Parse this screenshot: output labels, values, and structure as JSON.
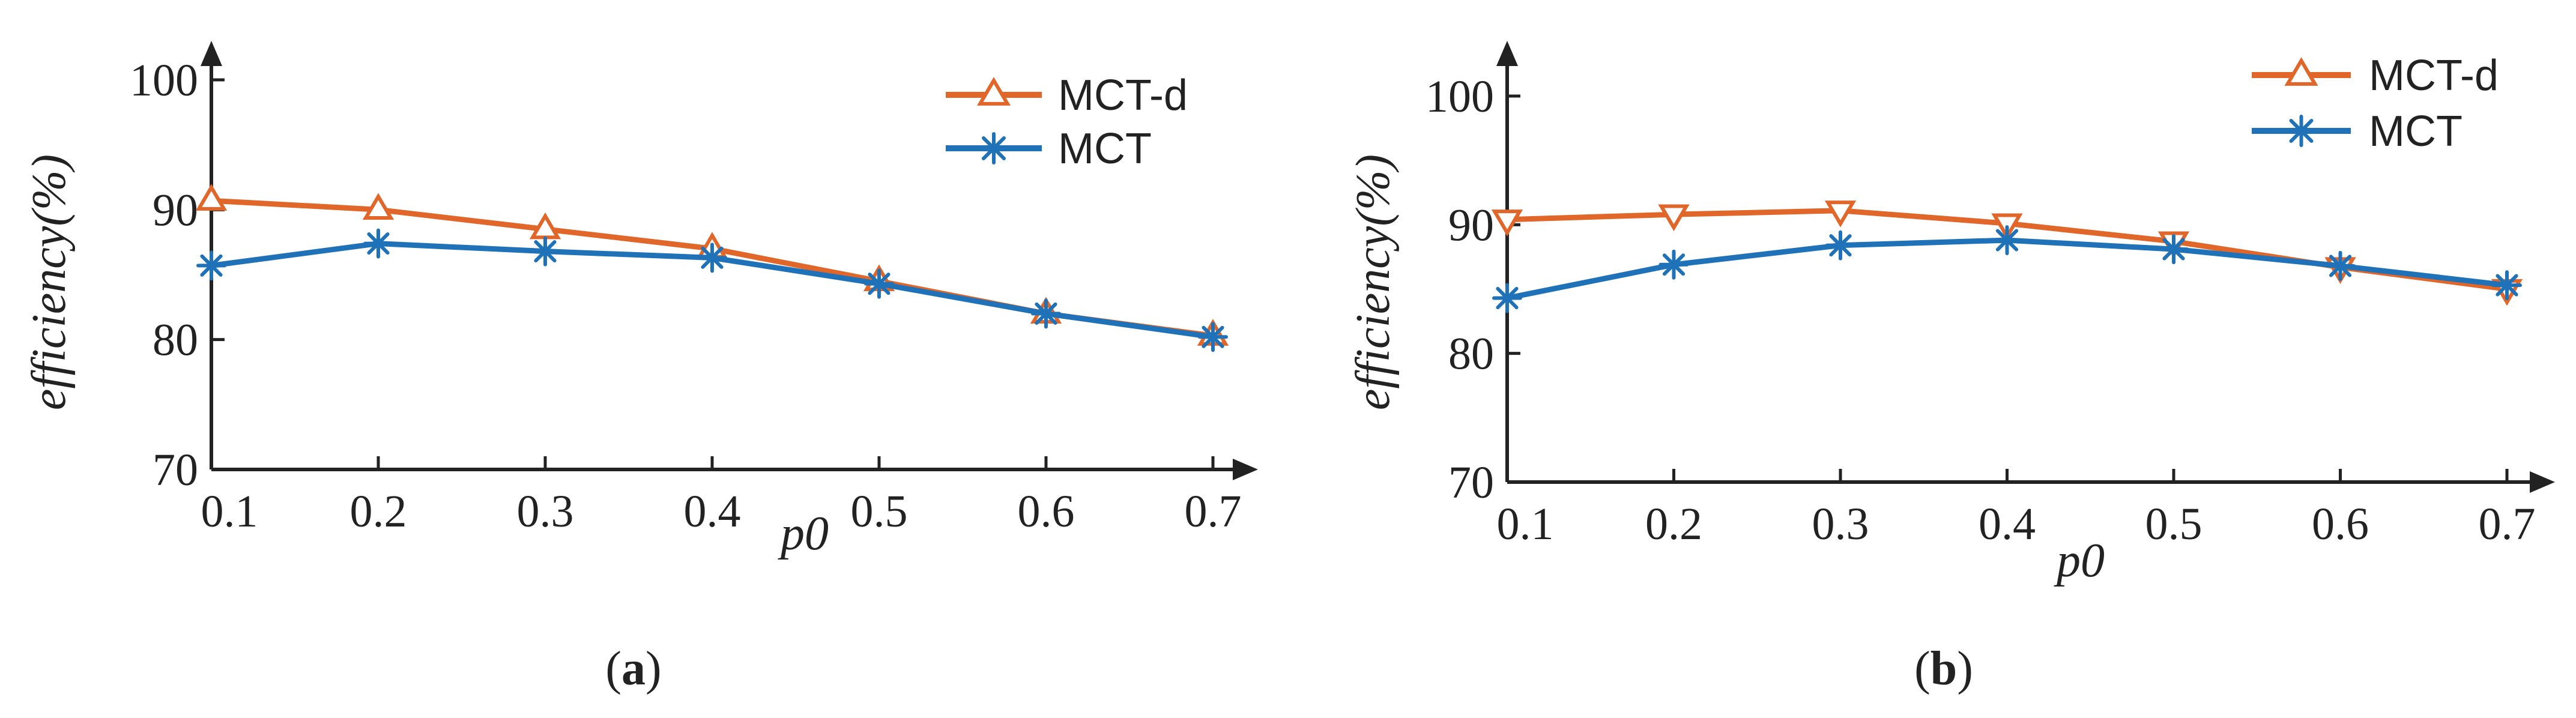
{
  "chart_data": [
    {
      "type": "line",
      "panel_label": {
        "open": "(",
        "letter": "a",
        "close": ")"
      },
      "xlabel": "p0",
      "ylabel": "efficiency(%)",
      "x": [
        0.1,
        0.2,
        0.3,
        0.4,
        0.5,
        0.6,
        0.7
      ],
      "x_tick_labels": [
        "0.1",
        "0.2",
        "0.3",
        "0.4",
        "0.5",
        "0.6",
        "0.7"
      ],
      "ylim": [
        70,
        100
      ],
      "y_ticks": [
        70,
        80,
        90,
        100
      ],
      "y_tick_labels": [
        "70",
        "80",
        "90",
        "100"
      ],
      "legend_position": "top-right",
      "series": [
        {
          "name": "MCT-d",
          "color": "#e0662a",
          "marker": "triangle-up",
          "values": [
            90.7,
            90.0,
            88.5,
            87.0,
            84.5,
            82.0,
            80.3
          ]
        },
        {
          "name": "MCT",
          "color": "#1f72b8",
          "marker": "asterisk",
          "values": [
            85.7,
            87.4,
            86.8,
            86.3,
            84.3,
            82.0,
            80.2
          ]
        }
      ]
    },
    {
      "type": "line",
      "panel_label": {
        "open": "(",
        "letter": "b",
        "close": ")"
      },
      "xlabel": "p0",
      "ylabel": "efficiency(%)",
      "x": [
        0.1,
        0.2,
        0.3,
        0.4,
        0.5,
        0.6,
        0.7
      ],
      "x_tick_labels": [
        "0.1",
        "0.2",
        "0.3",
        "0.4",
        "0.5",
        "0.6",
        "0.7"
      ],
      "ylim": [
        70,
        100
      ],
      "y_ticks": [
        70,
        80,
        90,
        100
      ],
      "y_tick_labels": [
        "70",
        "80",
        "90",
        "100"
      ],
      "legend_position": "top-right",
      "series": [
        {
          "name": "MCT-d",
          "color": "#e0662a",
          "marker": "triangle-down",
          "legend_marker": "triangle-up",
          "values": [
            90.4,
            90.8,
            91.1,
            90.1,
            88.7,
            86.7,
            85.0
          ]
        },
        {
          "name": "MCT",
          "color": "#1f72b8",
          "marker": "asterisk",
          "values": [
            84.3,
            86.9,
            88.4,
            88.8,
            88.1,
            86.8,
            85.3
          ]
        }
      ]
    }
  ]
}
